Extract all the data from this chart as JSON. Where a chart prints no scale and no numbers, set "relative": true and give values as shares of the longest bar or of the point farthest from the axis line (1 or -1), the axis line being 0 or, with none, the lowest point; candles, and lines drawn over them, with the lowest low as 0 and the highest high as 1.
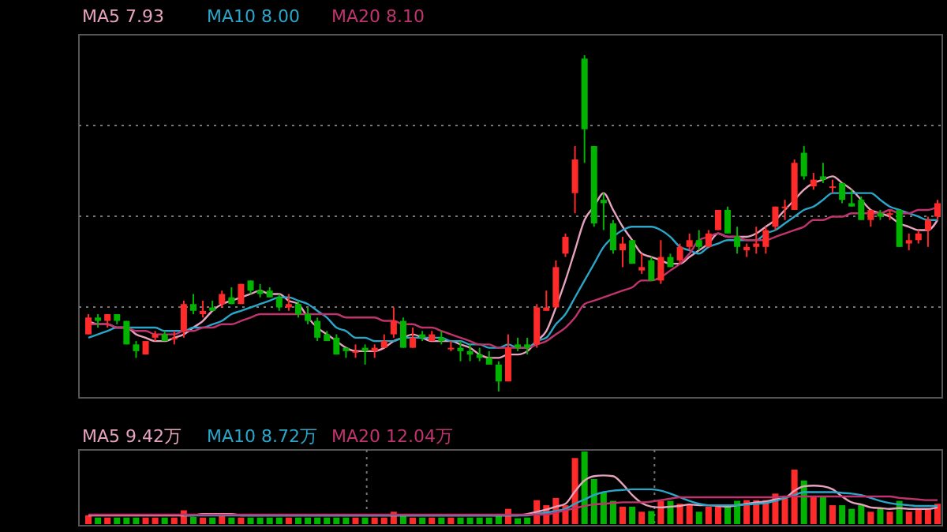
{
  "chart_data": [
    {
      "type": "candlestick",
      "relative": true,
      "grid": "y",
      "legend": "top left",
      "categories": [
        null,
        null,
        null,
        null,
        null,
        null,
        null,
        null,
        null,
        null,
        null,
        null,
        null,
        null,
        null,
        null,
        null,
        null,
        null,
        null,
        null,
        null,
        null,
        null,
        null,
        null,
        null,
        null,
        null,
        null,
        null,
        null,
        null,
        null,
        null,
        null,
        null,
        null,
        null,
        null,
        null,
        null,
        null,
        null,
        null,
        null,
        null,
        null,
        null,
        null,
        null,
        null,
        null,
        null,
        null,
        null,
        null,
        null,
        null,
        null,
        null,
        null,
        null,
        null,
        null,
        null,
        null,
        null,
        null,
        null,
        null,
        null,
        null,
        null,
        null,
        null,
        null,
        null,
        null,
        null,
        null,
        null,
        null,
        null,
        null,
        null,
        null,
        null,
        null,
        null
      ],
      "ohlc": [
        [
          0.17,
          0.23,
          0.17,
          0.22
        ],
        [
          0.22,
          0.23,
          0.19,
          0.21
        ],
        [
          0.21,
          0.23,
          0.19,
          0.23
        ],
        [
          0.23,
          0.23,
          0.2,
          0.21
        ],
        [
          0.21,
          0.21,
          0.14,
          0.14
        ],
        [
          0.14,
          0.15,
          0.1,
          0.12
        ],
        [
          0.11,
          0.15,
          0.11,
          0.15
        ],
        [
          0.16,
          0.18,
          0.15,
          0.17
        ],
        [
          0.17,
          0.18,
          0.15,
          0.15
        ],
        [
          0.16,
          0.18,
          0.14,
          0.16
        ],
        [
          0.18,
          0.27,
          0.16,
          0.26
        ],
        [
          0.26,
          0.29,
          0.23,
          0.24
        ],
        [
          0.23,
          0.27,
          0.22,
          0.24
        ],
        [
          0.25,
          0.27,
          0.24,
          0.24
        ],
        [
          0.26,
          0.3,
          0.25,
          0.29
        ],
        [
          0.28,
          0.31,
          0.26,
          0.26
        ],
        [
          0.26,
          0.32,
          0.26,
          0.32
        ],
        [
          0.33,
          0.33,
          0.29,
          0.3
        ],
        [
          0.3,
          0.32,
          0.28,
          0.29
        ],
        [
          0.3,
          0.31,
          0.28,
          0.28
        ],
        [
          0.28,
          0.29,
          0.24,
          0.25
        ],
        [
          0.25,
          0.29,
          0.24,
          0.26
        ],
        [
          0.26,
          0.27,
          0.22,
          0.23
        ],
        [
          0.23,
          0.25,
          0.2,
          0.21
        ],
        [
          0.21,
          0.22,
          0.15,
          0.16
        ],
        [
          0.17,
          0.18,
          0.15,
          0.15
        ],
        [
          0.16,
          0.17,
          0.11,
          0.11
        ],
        [
          0.13,
          0.13,
          0.1,
          0.12
        ],
        [
          0.12,
          0.14,
          0.1,
          0.12
        ],
        [
          0.13,
          0.14,
          0.08,
          0.12
        ],
        [
          0.12,
          0.14,
          0.1,
          0.13
        ],
        [
          0.13,
          0.17,
          0.13,
          0.15
        ],
        [
          0.17,
          0.25,
          0.16,
          0.21
        ],
        [
          0.21,
          0.22,
          0.13,
          0.13
        ],
        [
          0.13,
          0.19,
          0.13,
          0.16
        ],
        [
          0.17,
          0.18,
          0.15,
          0.16
        ],
        [
          0.15,
          0.18,
          0.15,
          0.17
        ],
        [
          0.16,
          0.18,
          0.14,
          0.15
        ],
        [
          0.13,
          0.15,
          0.12,
          0.13
        ],
        [
          0.13,
          0.15,
          0.09,
          0.12
        ],
        [
          0.12,
          0.14,
          0.09,
          0.11
        ],
        [
          0.11,
          0.13,
          0.09,
          0.1
        ],
        [
          0.1,
          0.12,
          0.08,
          0.08
        ],
        [
          0.08,
          0.09,
          0,
          0.03
        ],
        [
          0.03,
          0.17,
          0.03,
          0.13
        ],
        [
          0.14,
          0.16,
          0.12,
          0.13
        ],
        [
          0.14,
          0.16,
          0.11,
          0.13
        ],
        [
          0.14,
          0.26,
          0.13,
          0.25
        ],
        [
          0.24,
          0.3,
          0.24,
          0.25
        ],
        [
          0.25,
          0.39,
          0.25,
          0.37
        ],
        [
          0.41,
          0.47,
          0.4,
          0.46
        ],
        [
          0.59,
          0.73,
          0.53,
          0.69
        ],
        [
          0.99,
          1,
          0.68,
          0.78
        ],
        [
          0.73,
          0.73,
          0.49,
          0.5
        ],
        [
          0.57,
          0.59,
          0.48,
          0.56
        ],
        [
          0.5,
          0.51,
          0.41,
          0.42
        ],
        [
          0.42,
          0.46,
          0.37,
          0.44
        ],
        [
          0.45,
          0.45,
          0.38,
          0.38
        ],
        [
          0.36,
          0.41,
          0.35,
          0.37
        ],
        [
          0.39,
          0.4,
          0.33,
          0.33
        ],
        [
          0.33,
          0.45,
          0.32,
          0.4
        ],
        [
          0.4,
          0.41,
          0.37,
          0.37
        ],
        [
          0.39,
          0.44,
          0.38,
          0.43
        ],
        [
          0.43,
          0.47,
          0.42,
          0.45
        ],
        [
          0.45,
          0.48,
          0.42,
          0.43
        ],
        [
          0.43,
          0.48,
          0.43,
          0.47
        ],
        [
          0.48,
          0.54,
          0.48,
          0.54
        ],
        [
          0.54,
          0.55,
          0.47,
          0.47
        ],
        [
          0.46,
          0.49,
          0.41,
          0.43
        ],
        [
          0.42,
          0.44,
          0.4,
          0.43
        ],
        [
          0.43,
          0.49,
          0.41,
          0.44
        ],
        [
          0.43,
          0.49,
          0.41,
          0.48
        ],
        [
          0.49,
          0.55,
          0.48,
          0.55
        ],
        [
          0.55,
          0.57,
          0.51,
          0.55
        ],
        [
          0.54,
          0.69,
          0.54,
          0.68
        ],
        [
          0.71,
          0.73,
          0.63,
          0.64
        ],
        [
          0.61,
          0.65,
          0.6,
          0.63
        ],
        [
          0.64,
          0.68,
          0.62,
          0.63
        ],
        [
          0.61,
          0.63,
          0.59,
          0.61
        ],
        [
          0.62,
          0.62,
          0.56,
          0.57
        ],
        [
          0.56,
          0.6,
          0.55,
          0.55
        ],
        [
          0.57,
          0.58,
          0.51,
          0.51
        ],
        [
          0.51,
          0.54,
          0.49,
          0.54
        ],
        [
          0.53,
          0.54,
          0.51,
          0.52
        ],
        [
          0.53,
          0.54,
          0.51,
          0.53
        ],
        [
          0.54,
          0.54,
          0.43,
          0.43
        ],
        [
          0.44,
          0.47,
          0.42,
          0.45
        ],
        [
          0.45,
          0.48,
          0.44,
          0.47
        ],
        [
          0.48,
          0.52,
          0.43,
          0.51
        ],
        [
          0.52,
          0.57,
          0.51,
          0.56
        ]
      ],
      "colors": [
        "#ff2a2a",
        "#00b400",
        "#ff2a2a",
        "#00b400",
        "#00b400",
        "#00b400",
        "#ff2a2a",
        "#ff2a2a",
        "#00b400",
        "#ff2a2a",
        "#ff2a2a",
        "#00b400",
        "#ff2a2a",
        "#00b400",
        "#ff2a2a",
        "#00b400",
        "#ff2a2a",
        "#00b400",
        "#00b400",
        "#00b400",
        "#00b400",
        "#ff2a2a",
        "#00b400",
        "#00b400",
        "#00b400",
        "#00b400",
        "#00b400",
        "#00b400",
        "#ff2a2a",
        "#00b400",
        "#ff2a2a",
        "#ff2a2a",
        "#ff2a2a",
        "#00b400",
        "#ff2a2a",
        "#00b400",
        "#ff2a2a",
        "#00b400",
        "#ff2a2a",
        "#00b400",
        "#00b400",
        "#00b400",
        "#00b400",
        "#00b400",
        "#ff2a2a",
        "#00b400",
        "#00b400",
        "#ff2a2a",
        "#ff2a2a",
        "#ff2a2a",
        "#ff2a2a",
        "#ff2a2a",
        "#00b400",
        "#00b400",
        "#00b400",
        "#00b400",
        "#ff2a2a",
        "#00b400",
        "#ff2a2a",
        "#00b400",
        "#ff2a2a",
        "#00b400",
        "#ff2a2a",
        "#ff2a2a",
        "#00b400",
        "#ff2a2a",
        "#ff2a2a",
        "#00b400",
        "#00b400",
        "#ff2a2a",
        "#ff2a2a",
        "#ff2a2a",
        "#ff2a2a",
        "#ff2a2a",
        "#ff2a2a",
        "#00b400",
        "#ff2a2a",
        "#00b400",
        "#ff2a2a",
        "#00b400",
        "#00b400",
        "#00b400",
        "#ff2a2a",
        "#00b400",
        "#ff2a2a",
        "#00b400",
        "#ff2a2a",
        "#ff2a2a",
        "#ff2a2a",
        "#ff2a2a"
      ],
      "series": [
        {
          "type": "line",
          "name": "MA5 7.93",
          "color": "#e6a3bd",
          "values": [
            0.21,
            0.2,
            0.2,
            0.19,
            0.19,
            0.17,
            0.16,
            0.15,
            0.15,
            0.16,
            0.17,
            0.19,
            0.21,
            0.24,
            0.26,
            0.27,
            0.28,
            0.29,
            0.3,
            0.29,
            0.29,
            0.27,
            0.26,
            0.22,
            0.19,
            0.17,
            0.15,
            0.13,
            0.12,
            0.12,
            0.12,
            0.13,
            0.15,
            0.16,
            0.17,
            0.16,
            0.15,
            0.15,
            0.15,
            0.14,
            0.13,
            0.11,
            0.1,
            0.1,
            0.11,
            0.11,
            0.12,
            0.15,
            0.18,
            0.25,
            0.33,
            0.42,
            0.51,
            0.55,
            0.59,
            0.54,
            0.49,
            0.45,
            0.41,
            0.4,
            0.39,
            0.38,
            0.38,
            0.4,
            0.42,
            0.44,
            0.47,
            0.46,
            0.46,
            0.46,
            0.47,
            0.49,
            0.51,
            0.54,
            0.57,
            0.6,
            0.62,
            0.63,
            0.64,
            0.62,
            0.6,
            0.57,
            0.54,
            0.53,
            0.52,
            0.5,
            0.49,
            0.48,
            0.48,
            0.51
          ]
        },
        {
          "type": "line",
          "name": "MA10 8.00",
          "color": "#2ba6c8",
          "values": [
            0.16,
            0.17,
            0.18,
            0.19,
            0.19,
            0.19,
            0.19,
            0.19,
            0.18,
            0.18,
            0.18,
            0.19,
            0.19,
            0.2,
            0.21,
            0.23,
            0.24,
            0.25,
            0.26,
            0.27,
            0.28,
            0.28,
            0.27,
            0.26,
            0.24,
            0.22,
            0.19,
            0.18,
            0.16,
            0.16,
            0.15,
            0.15,
            0.15,
            0.16,
            0.16,
            0.16,
            0.16,
            0.16,
            0.15,
            0.15,
            0.14,
            0.14,
            0.13,
            0.13,
            0.14,
            0.13,
            0.13,
            0.15,
            0.16,
            0.2,
            0.23,
            0.28,
            0.33,
            0.38,
            0.43,
            0.46,
            0.48,
            0.49,
            0.49,
            0.49,
            0.48,
            0.46,
            0.43,
            0.42,
            0.41,
            0.43,
            0.44,
            0.45,
            0.45,
            0.45,
            0.45,
            0.47,
            0.48,
            0.5,
            0.52,
            0.54,
            0.55,
            0.57,
            0.59,
            0.59,
            0.59,
            0.59,
            0.59,
            0.57,
            0.55,
            0.54,
            0.53,
            0.52,
            0.51,
            0.51
          ]
        },
        {
          "type": "line",
          "name": "MA20 8.10",
          "color": "#c0346e",
          "values": [
            0.2,
            0.2,
            0.2,
            0.19,
            0.19,
            0.18,
            0.18,
            0.17,
            0.17,
            0.17,
            0.18,
            0.18,
            0.19,
            0.19,
            0.2,
            0.2,
            0.21,
            0.22,
            0.23,
            0.23,
            0.23,
            0.23,
            0.23,
            0.23,
            0.23,
            0.23,
            0.23,
            0.22,
            0.22,
            0.22,
            0.22,
            0.21,
            0.21,
            0.2,
            0.2,
            0.19,
            0.19,
            0.18,
            0.17,
            0.16,
            0.15,
            0.14,
            0.14,
            0.13,
            0.13,
            0.13,
            0.13,
            0.14,
            0.15,
            0.17,
            0.19,
            0.22,
            0.26,
            0.27,
            0.28,
            0.29,
            0.3,
            0.31,
            0.33,
            0.33,
            0.34,
            0.36,
            0.38,
            0.41,
            0.45,
            0.46,
            0.47,
            0.46,
            0.46,
            0.45,
            0.45,
            0.45,
            0.46,
            0.47,
            0.48,
            0.49,
            0.51,
            0.51,
            0.52,
            0.52,
            0.53,
            0.53,
            0.53,
            0.53,
            0.54,
            0.53,
            0.53,
            0.54,
            0.54,
            0.55
          ]
        }
      ]
    },
    {
      "type": "bar",
      "relative": true,
      "grid": "x",
      "legend": "top left",
      "categories": [
        null,
        null,
        null,
        null,
        null,
        null,
        null,
        null,
        null,
        null,
        null,
        null,
        null,
        null,
        null,
        null,
        null,
        null,
        null,
        null,
        null,
        null,
        null,
        null,
        null,
        null,
        null,
        null,
        null,
        null,
        null,
        null,
        null,
        null,
        null,
        null,
        null,
        null,
        null,
        null,
        null,
        null,
        null,
        null,
        null,
        null,
        null,
        null,
        null,
        null,
        null,
        null,
        null,
        null,
        null,
        null,
        null,
        null,
        null,
        null,
        null,
        null,
        null,
        null,
        null,
        null,
        null,
        null,
        null,
        null,
        null,
        null,
        null,
        null,
        null,
        null,
        null,
        null,
        null,
        null,
        null,
        null,
        null,
        null,
        null,
        null,
        null,
        null,
        null,
        null
      ],
      "series": [
        {
          "type": "bar",
          "values": [
            0.12,
            0.09,
            0.09,
            0.09,
            0.09,
            0.09,
            0.09,
            0.09,
            0.09,
            0.09,
            0.19,
            0.1,
            0.09,
            0.09,
            0.14,
            0.09,
            0.09,
            0.09,
            0.09,
            0.09,
            0.09,
            0.09,
            0.09,
            0.09,
            0.09,
            0.09,
            0.09,
            0.09,
            0.09,
            0.09,
            0.09,
            0.09,
            0.17,
            0.14,
            0.09,
            0.09,
            0.09,
            0.09,
            0.09,
            0.09,
            0.09,
            0.09,
            0.09,
            0.14,
            0.21,
            0.08,
            0.09,
            0.33,
            0.26,
            0.36,
            0.26,
            0.91,
            1,
            0.62,
            0.44,
            0.32,
            0.24,
            0.24,
            0.17,
            0.18,
            0.32,
            0.32,
            0.28,
            0.26,
            0.17,
            0.24,
            0.24,
            0.24,
            0.32,
            0.33,
            0.33,
            0.33,
            0.42,
            0.39,
            0.75,
            0.6,
            0.37,
            0.37,
            0.26,
            0.26,
            0.21,
            0.26,
            0.17,
            0.21,
            0.17,
            0.32,
            0.17,
            0.21,
            0.21,
            0.28
          ],
          "colors": [
            "#ff2a2a",
            "#00b400",
            "#ff2a2a",
            "#00b400",
            "#00b400",
            "#00b400",
            "#ff2a2a",
            "#ff2a2a",
            "#00b400",
            "#ff2a2a",
            "#ff2a2a",
            "#00b400",
            "#ff2a2a",
            "#00b400",
            "#ff2a2a",
            "#00b400",
            "#ff2a2a",
            "#00b400",
            "#00b400",
            "#00b400",
            "#00b400",
            "#ff2a2a",
            "#00b400",
            "#00b400",
            "#00b400",
            "#00b400",
            "#00b400",
            "#00b400",
            "#ff2a2a",
            "#00b400",
            "#ff2a2a",
            "#ff2a2a",
            "#ff2a2a",
            "#00b400",
            "#ff2a2a",
            "#00b400",
            "#ff2a2a",
            "#00b400",
            "#ff2a2a",
            "#00b400",
            "#00b400",
            "#00b400",
            "#00b400",
            "#00b400",
            "#ff2a2a",
            "#00b400",
            "#00b400",
            "#ff2a2a",
            "#ff2a2a",
            "#ff2a2a",
            "#ff2a2a",
            "#ff2a2a",
            "#00b400",
            "#00b400",
            "#00b400",
            "#00b400",
            "#ff2a2a",
            "#00b400",
            "#ff2a2a",
            "#00b400",
            "#ff2a2a",
            "#00b400",
            "#ff2a2a",
            "#ff2a2a",
            "#00b400",
            "#ff2a2a",
            "#ff2a2a",
            "#00b400",
            "#00b400",
            "#ff2a2a",
            "#ff2a2a",
            "#ff2a2a",
            "#ff2a2a",
            "#ff2a2a",
            "#ff2a2a",
            "#00b400",
            "#ff2a2a",
            "#00b400",
            "#ff2a2a",
            "#00b400",
            "#00b400",
            "#00b400",
            "#ff2a2a",
            "#00b400",
            "#ff2a2a",
            "#00b400",
            "#ff2a2a",
            "#ff2a2a",
            "#ff2a2a",
            "#ff2a2a"
          ]
        },
        {
          "type": "line",
          "name": "MA5 9.42万",
          "color": "#e6a3bd",
          "values": [
            0.12,
            0.12,
            0.12,
            0.12,
            0.12,
            0.12,
            0.12,
            0.12,
            0.12,
            0.12,
            0.12,
            0.12,
            0.14,
            0.14,
            0.14,
            0.14,
            0.12,
            0.12,
            0.12,
            0.12,
            0.12,
            0.12,
            0.12,
            0.12,
            0.12,
            0.12,
            0.12,
            0.12,
            0.12,
            0.12,
            0.12,
            0.12,
            0.12,
            0.12,
            0.12,
            0.12,
            0.12,
            0.12,
            0.12,
            0.12,
            0.12,
            0.12,
            0.12,
            0.12,
            0.12,
            0.12,
            0.14,
            0.17,
            0.2,
            0.24,
            0.28,
            0.45,
            0.6,
            0.66,
            0.67,
            0.66,
            0.55,
            0.4,
            0.29,
            0.24,
            0.23,
            0.24,
            0.25,
            0.27,
            0.26,
            0.26,
            0.25,
            0.24,
            0.26,
            0.28,
            0.3,
            0.31,
            0.34,
            0.36,
            0.46,
            0.52,
            0.53,
            0.52,
            0.48,
            0.38,
            0.3,
            0.27,
            0.23,
            0.22,
            0.21,
            0.22,
            0.21,
            0.21,
            0.21,
            0.23
          ]
        },
        {
          "type": "line",
          "name": "MA10 8.72万",
          "color": "#2ba6c8",
          "values": [
            null,
            null,
            null,
            null,
            null,
            null,
            null,
            null,
            null,
            null,
            0.12,
            0.12,
            0.12,
            0.12,
            0.12,
            0.12,
            0.12,
            0.12,
            0.12,
            0.12,
            0.12,
            0.12,
            0.12,
            0.12,
            0.12,
            0.12,
            0.12,
            0.12,
            0.12,
            0.12,
            0.12,
            0.12,
            0.12,
            0.12,
            0.12,
            0.12,
            0.12,
            0.12,
            0.12,
            0.12,
            0.12,
            0.12,
            0.12,
            0.12,
            0.12,
            0.12,
            0.12,
            0.14,
            0.16,
            0.18,
            0.21,
            0.28,
            0.34,
            0.4,
            0.44,
            0.46,
            0.47,
            0.48,
            0.48,
            0.48,
            0.46,
            0.42,
            0.37,
            0.32,
            0.28,
            0.26,
            0.26,
            0.26,
            0.26,
            0.27,
            0.28,
            0.29,
            0.32,
            0.36,
            0.4,
            0.44,
            0.44,
            0.44,
            0.44,
            0.43,
            0.42,
            0.4,
            0.36,
            0.32,
            0.29,
            0.27,
            0.26,
            0.25,
            0.25,
            0.25
          ]
        },
        {
          "type": "line",
          "name": "MA20 12.04万",
          "color": "#c0346e",
          "values": [
            0.13,
            0.13,
            0.13,
            0.13,
            0.13,
            0.13,
            0.13,
            0.13,
            0.13,
            0.13,
            0.13,
            0.13,
            0.13,
            0.13,
            0.13,
            0.13,
            0.13,
            0.13,
            0.13,
            0.13,
            0.13,
            0.13,
            0.13,
            0.13,
            0.13,
            0.13,
            0.13,
            0.13,
            0.13,
            0.13,
            0.13,
            0.13,
            0.13,
            0.13,
            0.13,
            0.13,
            0.13,
            0.13,
            0.13,
            0.13,
            0.13,
            0.13,
            0.13,
            0.13,
            0.13,
            0.13,
            0.13,
            0.13,
            0.13,
            0.16,
            0.19,
            0.22,
            0.25,
            0.27,
            0.28,
            0.29,
            0.3,
            0.3,
            0.3,
            0.31,
            0.33,
            0.35,
            0.37,
            0.37,
            0.37,
            0.37,
            0.37,
            0.37,
            0.37,
            0.37,
            0.37,
            0.37,
            0.37,
            0.38,
            0.38,
            0.38,
            0.38,
            0.38,
            0.38,
            0.38,
            0.38,
            0.38,
            0.38,
            0.38,
            0.38,
            0.36,
            0.35,
            0.34,
            0.33,
            0.33
          ]
        }
      ]
    }
  ]
}
